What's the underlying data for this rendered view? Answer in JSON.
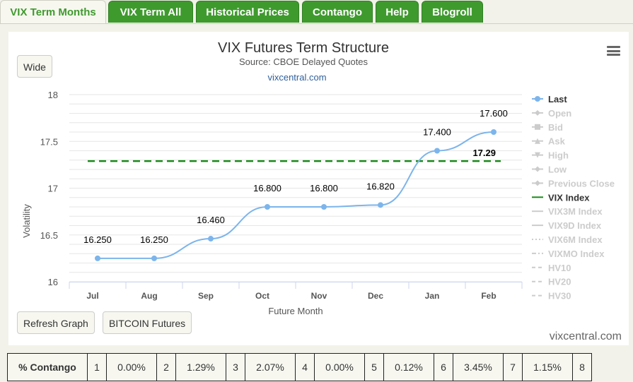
{
  "tabs": [
    {
      "label": "VIX Term Months",
      "active": true
    },
    {
      "label": "VIX Term All",
      "active": false
    },
    {
      "label": "Historical Prices",
      "active": false
    },
    {
      "label": "Contango",
      "active": false
    },
    {
      "label": "Help",
      "active": false
    },
    {
      "label": "Blogroll",
      "active": false
    }
  ],
  "buttons": {
    "wide": "Wide",
    "refresh": "Refresh Graph",
    "bitcoin": "BITCOIN Futures"
  },
  "watermark": "vixcentral.com",
  "chart_data": {
    "type": "line",
    "title": "VIX Futures Term Structure",
    "subtitle": "Source: CBOE Delayed Quotes",
    "credit": "vixcentral.com",
    "xlabel": "Future Month",
    "ylabel": "Volatility",
    "categories": [
      "Jul",
      "Aug",
      "Sep",
      "Oct",
      "Nov",
      "Dec",
      "Jan",
      "Feb"
    ],
    "ylim": [
      16,
      18
    ],
    "yticks": [
      "16",
      "16.5",
      "17",
      "17.5",
      "18"
    ],
    "grid": true,
    "legend_position": "right",
    "series": [
      {
        "name": "Last",
        "values": [
          16.25,
          16.25,
          16.46,
          16.8,
          16.8,
          16.82,
          17.4,
          17.6
        ],
        "labels": [
          "16.250",
          "16.250",
          "16.460",
          "16.800",
          "16.800",
          "16.820",
          "17.400",
          "17.600"
        ],
        "color": "#7cb5ec"
      },
      {
        "name": "VIX Index",
        "value": 17.29,
        "label": "17.29",
        "color": "#1a8a1a",
        "style": "dashed"
      }
    ],
    "legend": [
      {
        "name": "Last",
        "active": true,
        "symbol": "dot-line",
        "color": "#7cb5ec"
      },
      {
        "name": "Open",
        "active": false,
        "symbol": "diamond-line"
      },
      {
        "name": "Bid",
        "active": false,
        "symbol": "square-line"
      },
      {
        "name": "Ask",
        "active": false,
        "symbol": "triangle-line"
      },
      {
        "name": "High",
        "active": false,
        "symbol": "triangle-down-line"
      },
      {
        "name": "Low",
        "active": false,
        "symbol": "diamond-line"
      },
      {
        "name": "Previous Close",
        "active": false,
        "symbol": "diamond-line"
      },
      {
        "name": "VIX Index",
        "active": true,
        "symbol": "line",
        "color": "#1a8a1a"
      },
      {
        "name": "VIX3M Index",
        "active": false,
        "symbol": "line"
      },
      {
        "name": "VIX9D Index",
        "active": false,
        "symbol": "line"
      },
      {
        "name": "VIX6M Index",
        "active": false,
        "symbol": "dotted"
      },
      {
        "name": "VIXMO Index",
        "active": false,
        "symbol": "dashdot"
      },
      {
        "name": "HV10",
        "active": false,
        "symbol": "dash"
      },
      {
        "name": "HV20",
        "active": false,
        "symbol": "dash"
      },
      {
        "name": "HV30",
        "active": false,
        "symbol": "dash"
      }
    ]
  },
  "contango_table": {
    "header": "% Contango",
    "cells": [
      {
        "month": "1",
        "value": "0.00%"
      },
      {
        "month": "2",
        "value": "1.29%"
      },
      {
        "month": "3",
        "value": "2.07%"
      },
      {
        "month": "4",
        "value": "0.00%"
      },
      {
        "month": "5",
        "value": "0.12%"
      },
      {
        "month": "6",
        "value": "3.45%"
      },
      {
        "month": "7",
        "value": "1.15%"
      },
      {
        "month": "8",
        "value": ""
      }
    ]
  }
}
